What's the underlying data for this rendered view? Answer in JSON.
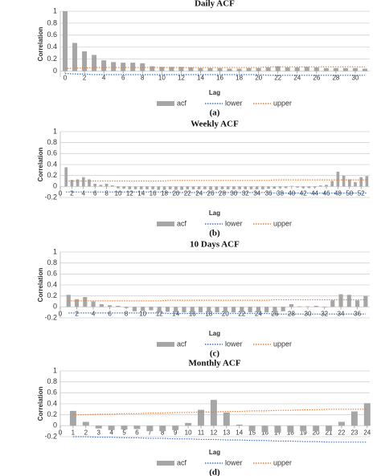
{
  "chart_data": [
    {
      "type": "bar",
      "title": "Daily ACF",
      "x_label": "Lag",
      "y_label": "Correlation",
      "caption": "(a)",
      "x": [
        0,
        1,
        2,
        3,
        4,
        5,
        6,
        7,
        8,
        9,
        10,
        11,
        12,
        13,
        14,
        15,
        16,
        17,
        18,
        19,
        20,
        21,
        22,
        23,
        24,
        25,
        26,
        27,
        28,
        29,
        30,
        31
      ],
      "xlim": [
        -0.5,
        31.5
      ],
      "xticks": [
        0,
        2,
        4,
        6,
        8,
        10,
        12,
        14,
        16,
        18,
        20,
        22,
        24,
        26,
        28,
        30
      ],
      "ylim": [
        -0.1,
        1
      ],
      "yticks": [
        0,
        0.2,
        0.4,
        0.6,
        0.8,
        1
      ],
      "grid": true,
      "series": [
        {
          "name": "acf",
          "color": "#a6a6a6",
          "style": "bar",
          "values": [
            1,
            0.47,
            0.33,
            0.27,
            0.18,
            0.15,
            0.14,
            0.14,
            0.13,
            0.08,
            0.07,
            0.07,
            0.07,
            0.06,
            0.05,
            0.05,
            0.05,
            0.04,
            0.04,
            0.05,
            0.05,
            0.06,
            0.08,
            0.06,
            0.06,
            0.07,
            0.06,
            0.05,
            0.05,
            0.05,
            0.05,
            0.04
          ]
        },
        {
          "name": "lower",
          "color": "#4472c4",
          "style": "dotted",
          "values": [
            -0.04,
            -0.05,
            -0.05,
            -0.06,
            -0.06,
            -0.06,
            -0.06,
            -0.06,
            -0.06,
            -0.06,
            -0.06,
            -0.06,
            -0.06,
            -0.06,
            -0.06,
            -0.06,
            -0.06,
            -0.06,
            -0.06,
            -0.06,
            -0.06,
            -0.07,
            -0.07,
            -0.07,
            -0.07,
            -0.07,
            -0.07,
            -0.07,
            -0.07,
            -0.07,
            -0.07,
            -0.07
          ]
        },
        {
          "name": "upper",
          "color": "#ed7d31",
          "style": "dotted",
          "values": [
            0.04,
            0.05,
            0.05,
            0.06,
            0.06,
            0.06,
            0.06,
            0.06,
            0.06,
            0.06,
            0.06,
            0.06,
            0.06,
            0.06,
            0.06,
            0.06,
            0.06,
            0.06,
            0.06,
            0.06,
            0.06,
            0.07,
            0.07,
            0.07,
            0.07,
            0.07,
            0.07,
            0.07,
            0.07,
            0.07,
            0.07,
            0.07
          ]
        }
      ]
    },
    {
      "type": "bar",
      "title": "Weekly ACF",
      "x_label": "Lag",
      "y_label": "Correlation",
      "caption": "(b)",
      "x": [
        1,
        2,
        3,
        4,
        5,
        6,
        7,
        8,
        9,
        10,
        11,
        12,
        13,
        14,
        15,
        16,
        17,
        18,
        19,
        20,
        21,
        22,
        23,
        24,
        25,
        26,
        27,
        28,
        29,
        30,
        31,
        32,
        33,
        34,
        35,
        36,
        37,
        38,
        39,
        40,
        41,
        42,
        43,
        44,
        45,
        46,
        47,
        48,
        49,
        50,
        51,
        52,
        53
      ],
      "xlim": [
        0,
        53.5
      ],
      "xticks": [
        0,
        2,
        4,
        6,
        8,
        10,
        12,
        14,
        16,
        18,
        20,
        22,
        24,
        26,
        28,
        30,
        32,
        34,
        36,
        38,
        40,
        42,
        44,
        46,
        48,
        50,
        52
      ],
      "ylim": [
        -0.2,
        1
      ],
      "yticks": [
        -0.2,
        0,
        0.2,
        0.4,
        0.6,
        0.8,
        1
      ],
      "grid": true,
      "series": [
        {
          "name": "acf",
          "color": "#a6a6a6",
          "style": "bar",
          "values": [
            0.35,
            0.12,
            0.13,
            0.17,
            0.13,
            0.05,
            0.03,
            0.05,
            0.02,
            -0.03,
            -0.04,
            -0.05,
            -0.05,
            -0.05,
            -0.05,
            -0.05,
            -0.06,
            -0.06,
            -0.05,
            -0.06,
            -0.06,
            -0.05,
            -0.05,
            -0.05,
            -0.05,
            -0.06,
            -0.06,
            -0.05,
            -0.05,
            -0.05,
            -0.05,
            -0.05,
            -0.05,
            -0.05,
            -0.05,
            -0.04,
            -0.04,
            -0.03,
            -0.03,
            0.01,
            -0.02,
            -0.03,
            -0.03,
            -0.02,
            0.02,
            0.03,
            0.1,
            0.27,
            0.2,
            0.13,
            0.08,
            0.17,
            0.19
          ]
        },
        {
          "name": "lower",
          "color": "#4472c4",
          "style": "dotted",
          "values": [
            -0.1,
            -0.1,
            -0.1,
            -0.1,
            -0.1,
            -0.1,
            -0.1,
            -0.1,
            -0.1,
            -0.1,
            -0.1,
            -0.1,
            -0.1,
            -0.1,
            -0.1,
            -0.1,
            -0.1,
            -0.1,
            -0.11,
            -0.11,
            -0.11,
            -0.11,
            -0.11,
            -0.11,
            -0.11,
            -0.11,
            -0.11,
            -0.11,
            -0.11,
            -0.11,
            -0.11,
            -0.11,
            -0.11,
            -0.11,
            -0.11,
            -0.11,
            -0.12,
            -0.12,
            -0.12,
            -0.12,
            -0.12,
            -0.12,
            -0.12,
            -0.12,
            -0.12,
            -0.12,
            -0.12,
            -0.12,
            -0.12,
            -0.12,
            -0.12,
            -0.12,
            -0.12
          ]
        },
        {
          "name": "upper",
          "color": "#ed7d31",
          "style": "dotted",
          "values": [
            0.1,
            0.1,
            0.1,
            0.1,
            0.1,
            0.1,
            0.1,
            0.1,
            0.1,
            0.1,
            0.1,
            0.1,
            0.1,
            0.1,
            0.1,
            0.1,
            0.1,
            0.1,
            0.11,
            0.11,
            0.11,
            0.11,
            0.11,
            0.11,
            0.11,
            0.11,
            0.11,
            0.11,
            0.11,
            0.11,
            0.11,
            0.11,
            0.11,
            0.11,
            0.11,
            0.11,
            0.12,
            0.12,
            0.12,
            0.12,
            0.12,
            0.12,
            0.12,
            0.12,
            0.12,
            0.12,
            0.12,
            0.12,
            0.12,
            0.12,
            0.12,
            0.12,
            0.12
          ]
        }
      ]
    },
    {
      "type": "bar",
      "title": "10 Days ACF",
      "x_label": "Lag",
      "y_label": "Correlation",
      "caption": "(c)",
      "x": [
        1,
        2,
        3,
        4,
        5,
        6,
        7,
        8,
        9,
        10,
        11,
        12,
        13,
        14,
        15,
        16,
        17,
        18,
        19,
        20,
        21,
        22,
        23,
        24,
        25,
        26,
        27,
        28,
        29,
        30,
        31,
        32,
        33,
        34,
        35,
        36,
        37
      ],
      "xlim": [
        0,
        37.5
      ],
      "xticks": [
        0,
        2,
        4,
        6,
        8,
        10,
        12,
        14,
        16,
        18,
        20,
        22,
        24,
        26,
        28,
        30,
        32,
        34,
        36
      ],
      "ylim": [
        -0.2,
        1
      ],
      "yticks": [
        -0.2,
        0,
        0.2,
        0.4,
        0.6,
        0.8,
        1
      ],
      "grid": true,
      "series": [
        {
          "name": "acf",
          "color": "#a6a6a6",
          "style": "bar",
          "values": [
            0.22,
            0.14,
            0.18,
            0.1,
            0.05,
            0.03,
            0.02,
            -0.02,
            -0.08,
            -0.07,
            -0.06,
            -0.1,
            -0.09,
            -0.1,
            -0.1,
            -0.1,
            -0.1,
            -0.1,
            -0.1,
            -0.1,
            -0.1,
            -0.1,
            -0.1,
            -0.1,
            -0.1,
            -0.1,
            -0.08,
            0.05,
            0.01,
            0.01,
            0.02,
            -0.01,
            0.12,
            0.23,
            0.22,
            0.12,
            0.2
          ]
        },
        {
          "name": "lower",
          "color": "#4472c4",
          "style": "dotted",
          "values": [
            -0.11,
            -0.11,
            -0.11,
            -0.11,
            -0.11,
            -0.11,
            -0.11,
            -0.11,
            -0.11,
            -0.11,
            -0.11,
            -0.11,
            -0.12,
            -0.12,
            -0.12,
            -0.12,
            -0.12,
            -0.12,
            -0.12,
            -0.12,
            -0.12,
            -0.12,
            -0.12,
            -0.12,
            -0.12,
            -0.13,
            -0.13,
            -0.13,
            -0.13,
            -0.13,
            -0.13,
            -0.13,
            -0.13,
            -0.13,
            -0.13,
            -0.13,
            -0.13
          ]
        },
        {
          "name": "upper",
          "color": "#ed7d31",
          "style": "dotted",
          "values": [
            0.11,
            0.11,
            0.11,
            0.11,
            0.11,
            0.11,
            0.11,
            0.11,
            0.11,
            0.11,
            0.11,
            0.11,
            0.12,
            0.12,
            0.12,
            0.12,
            0.12,
            0.12,
            0.12,
            0.12,
            0.12,
            0.12,
            0.12,
            0.12,
            0.12,
            0.13,
            0.13,
            0.13,
            0.13,
            0.13,
            0.13,
            0.13,
            0.13,
            0.13,
            0.13,
            0.13,
            0.13
          ]
        }
      ]
    },
    {
      "type": "bar",
      "title": "Monthly ACF",
      "x_label": "Lag",
      "y_label": "Correlation",
      "caption": "(d)",
      "x": [
        1,
        2,
        3,
        4,
        5,
        6,
        7,
        8,
        9,
        10,
        11,
        12,
        13,
        14,
        15,
        16,
        17,
        18,
        19,
        20,
        21,
        22,
        23,
        24
      ],
      "xlim": [
        0,
        24.2
      ],
      "xticks": [
        0,
        1,
        2,
        3,
        4,
        5,
        6,
        7,
        8,
        9,
        10,
        11,
        12,
        13,
        14,
        15,
        16,
        17,
        18,
        19,
        20,
        21,
        22,
        23,
        24
      ],
      "ylim": [
        -0.2,
        1
      ],
      "yticks": [
        -0.2,
        0,
        0.2,
        0.4,
        0.6,
        0.8,
        1
      ],
      "grid": true,
      "series": [
        {
          "name": "acf",
          "color": "#a6a6a6",
          "style": "bar",
          "values": [
            0.27,
            0.07,
            -0.05,
            -0.08,
            -0.07,
            -0.06,
            -0.1,
            -0.1,
            -0.08,
            0.05,
            0.29,
            0.47,
            0.24,
            0.02,
            -0.1,
            -0.12,
            -0.13,
            -0.12,
            -0.1,
            -0.1,
            -0.1,
            0.07,
            0.26,
            0.41
          ]
        },
        {
          "name": "lower",
          "color": "#4472c4",
          "style": "dotted",
          "values": [
            -0.2,
            -0.2,
            -0.21,
            -0.21,
            -0.22,
            -0.22,
            -0.23,
            -0.23,
            -0.24,
            -0.24,
            -0.25,
            -0.25,
            -0.26,
            -0.26,
            -0.27,
            -0.27,
            -0.28,
            -0.28,
            -0.29,
            -0.29,
            -0.3,
            -0.3,
            -0.3,
            -0.3
          ]
        },
        {
          "name": "upper",
          "color": "#ed7d31",
          "style": "dotted",
          "values": [
            0.2,
            0.2,
            0.21,
            0.21,
            0.22,
            0.22,
            0.23,
            0.23,
            0.24,
            0.24,
            0.25,
            0.25,
            0.26,
            0.26,
            0.27,
            0.27,
            0.28,
            0.28,
            0.29,
            0.29,
            0.3,
            0.3,
            0.3,
            0.3
          ]
        }
      ]
    }
  ]
}
